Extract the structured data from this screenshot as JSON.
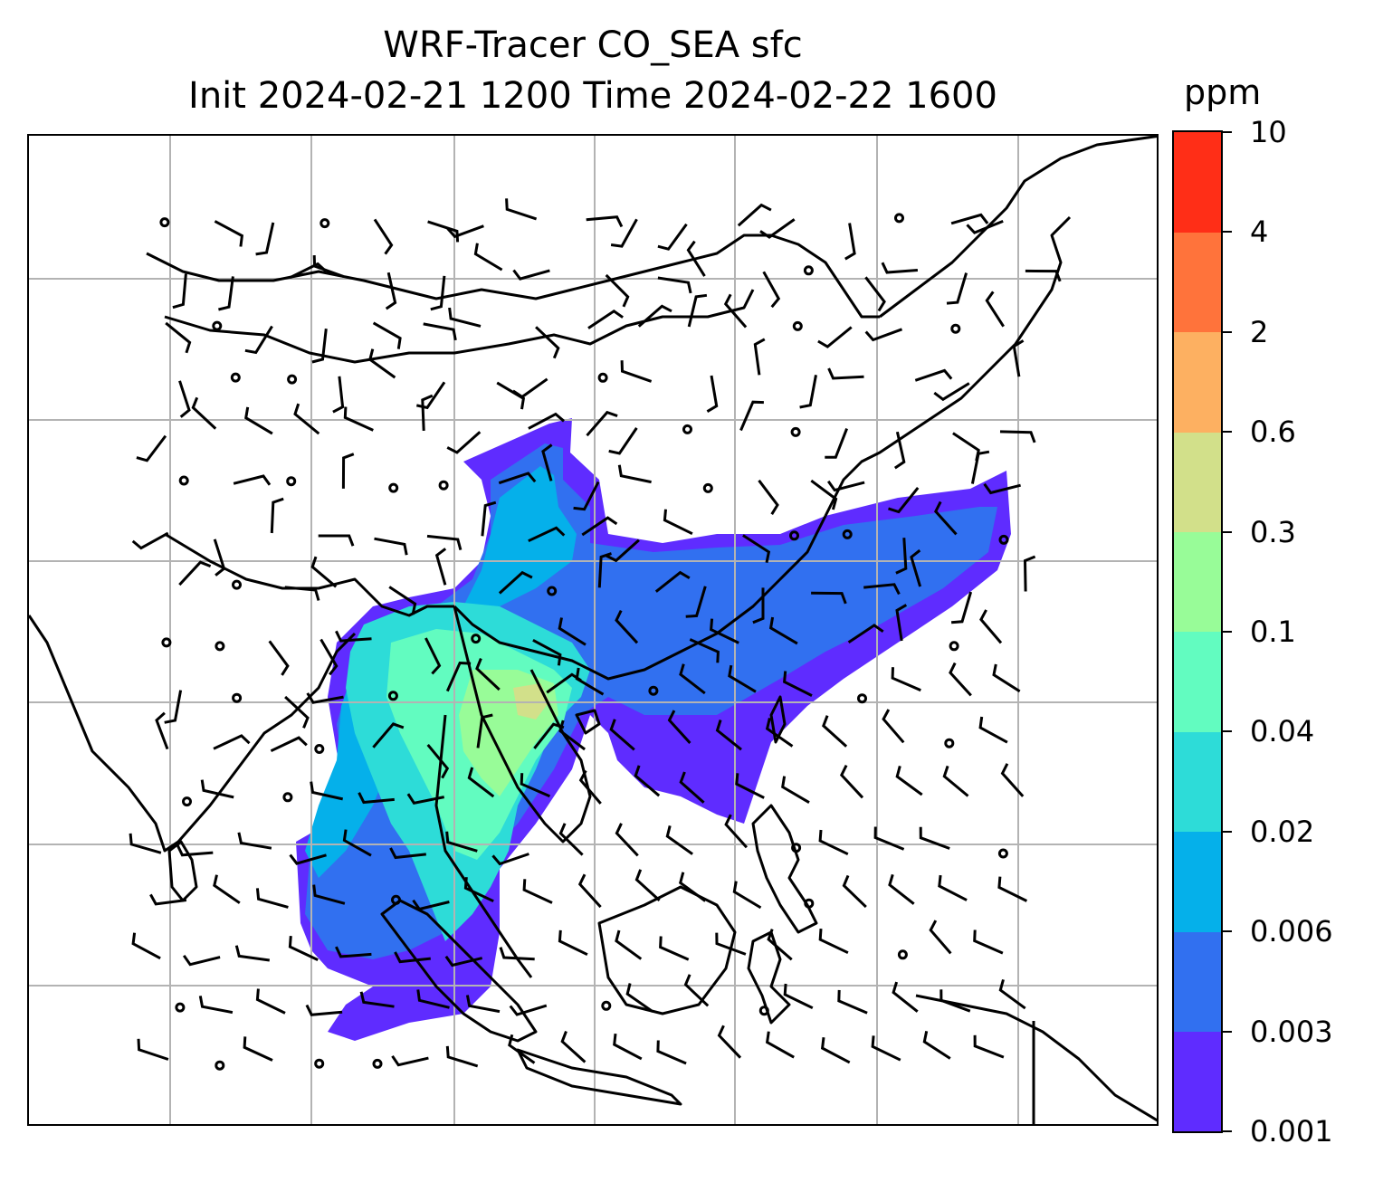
{
  "title_line1": "WRF-Tracer CO_SEA sfc",
  "title_line2": "Init 2024-02-21 1200 Time 2024-02-22 1600",
  "colorbar": {
    "unit": "ppm",
    "levels": [
      "0.001",
      "0.003",
      "0.006",
      "0.02",
      "0.04",
      "0.1",
      "0.3",
      "0.6",
      "2",
      "4",
      "10"
    ],
    "colors": [
      "#5f2cff",
      "#3170f0",
      "#05b0ea",
      "#2ddcd8",
      "#62fcc0",
      "#98fc98",
      "#d2e08a",
      "#fdb061",
      "#ff733b",
      "#ff2e17"
    ]
  },
  "map": {
    "background": "#ffffff",
    "gridlines": "#b3b3b3",
    "coastline_color": "#000000",
    "wind_barb_color": "#000000"
  }
}
